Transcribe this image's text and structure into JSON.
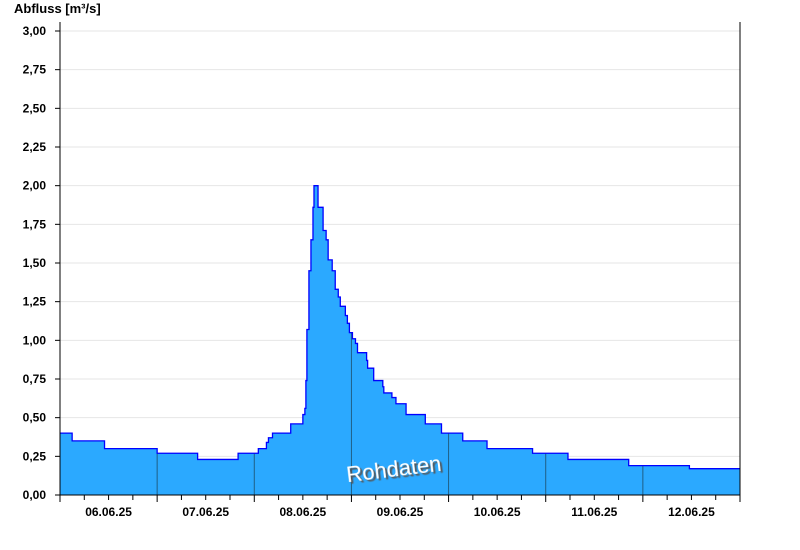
{
  "chart_data": {
    "type": "area",
    "ylabel": "Abfluss [m³/s]",
    "xlabel": "",
    "ylim": [
      0,
      3
    ],
    "xlim": [
      "06.06.25 00:00",
      "13.06.25 00:00"
    ],
    "y_ticks": [
      "0,00",
      "0,25",
      "0,50",
      "0,75",
      "1,00",
      "1,25",
      "1,50",
      "1,75",
      "2,00",
      "2,25",
      "2,50",
      "2,75",
      "3,00"
    ],
    "x_tick_labels": [
      "06.06.25",
      "07.06.25",
      "08.06.25",
      "09.06.25",
      "10.06.25",
      "11.06.25",
      "12.06.25"
    ],
    "grid": true,
    "step": true,
    "watermark": "Rohdaten",
    "colors": {
      "fill": "#2ba9ff",
      "line": "#0000ff",
      "day_lines": "#1f5f86",
      "grid": "#e6e6e6"
    },
    "points": [
      [
        "06.06.25 00:00",
        0.4
      ],
      [
        "06.06.25 03:00",
        0.35
      ],
      [
        "06.06.25 11:00",
        0.3
      ],
      [
        "07.06.25 00:00",
        0.27
      ],
      [
        "07.06.25 10:00",
        0.23
      ],
      [
        "07.06.25 20:00",
        0.27
      ],
      [
        "08.06.25 01:00",
        0.3
      ],
      [
        "08.06.25 03:00",
        0.34
      ],
      [
        "08.06.25 03:30",
        0.37
      ],
      [
        "08.06.25 04:30",
        0.4
      ],
      [
        "08.06.25 09:00",
        0.46
      ],
      [
        "08.06.25 12:00",
        0.52
      ],
      [
        "08.06.25 12:30",
        0.56
      ],
      [
        "08.06.25 12:45",
        0.74
      ],
      [
        "08.06.25 13:00",
        1.07
      ],
      [
        "08.06.25 13:30",
        1.45
      ],
      [
        "08.06.25 14:00",
        1.65
      ],
      [
        "08.06.25 14:30",
        1.86
      ],
      [
        "08.06.25 14:45",
        2.0
      ],
      [
        "08.06.25 15:45",
        1.86
      ],
      [
        "08.06.25 17:00",
        1.71
      ],
      [
        "08.06.25 17:45",
        1.65
      ],
      [
        "08.06.25 18:15",
        1.52
      ],
      [
        "08.06.25 19:15",
        1.45
      ],
      [
        "08.06.25 20:00",
        1.33
      ],
      [
        "08.06.25 20:45",
        1.28
      ],
      [
        "08.06.25 21:15",
        1.22
      ],
      [
        "08.06.25 22:30",
        1.16
      ],
      [
        "08.06.25 23:00",
        1.11
      ],
      [
        "08.06.25 23:30",
        1.05
      ],
      [
        "09.06.25 00:15",
        1.01
      ],
      [
        "09.06.25 01:00",
        0.98
      ],
      [
        "09.06.25 01:30",
        0.92
      ],
      [
        "09.06.25 03:45",
        0.87
      ],
      [
        "09.06.25 04:00",
        0.82
      ],
      [
        "09.06.25 05:30",
        0.74
      ],
      [
        "09.06.25 07:45",
        0.7
      ],
      [
        "09.06.25 08:00",
        0.66
      ],
      [
        "09.06.25 10:00",
        0.63
      ],
      [
        "09.06.25 11:00",
        0.59
      ],
      [
        "09.06.25 13:30",
        0.52
      ],
      [
        "09.06.25 18:15",
        0.46
      ],
      [
        "09.06.25 22:15",
        0.4
      ],
      [
        "10.06.25 03:30",
        0.35
      ],
      [
        "10.06.25 09:30",
        0.3
      ],
      [
        "10.06.25 20:45",
        0.27
      ],
      [
        "11.06.25 05:30",
        0.23
      ],
      [
        "11.06.25 20:30",
        0.19
      ],
      [
        "12.06.25 11:30",
        0.17
      ],
      [
        "13.06.25 00:00",
        0.17
      ]
    ]
  }
}
